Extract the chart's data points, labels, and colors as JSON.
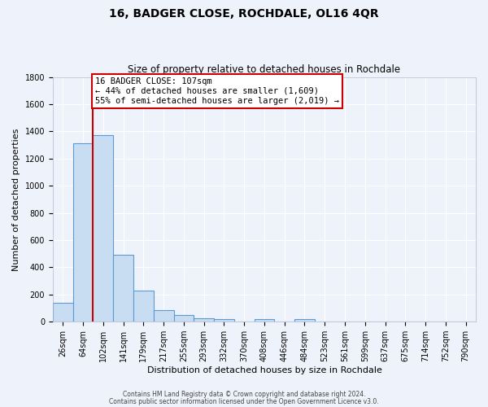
{
  "title": "16, BADGER CLOSE, ROCHDALE, OL16 4QR",
  "subtitle": "Size of property relative to detached houses in Rochdale",
  "xlabel": "Distribution of detached houses by size in Rochdale",
  "ylabel": "Number of detached properties",
  "bar_labels": [
    "26sqm",
    "64sqm",
    "102sqm",
    "141sqm",
    "179sqm",
    "217sqm",
    "255sqm",
    "293sqm",
    "332sqm",
    "370sqm",
    "408sqm",
    "446sqm",
    "484sqm",
    "523sqm",
    "561sqm",
    "599sqm",
    "637sqm",
    "675sqm",
    "714sqm",
    "752sqm",
    "790sqm"
  ],
  "bar_values": [
    140,
    1310,
    1370,
    490,
    230,
    85,
    50,
    28,
    20,
    0,
    20,
    0,
    20,
    0,
    0,
    0,
    0,
    0,
    0,
    0,
    0
  ],
  "bar_color": "#c9ddf2",
  "bar_edge_color": "#5b9bd5",
  "property_line_x": 2.0,
  "property_line_color": "#cc0000",
  "annotation_text": "16 BADGER CLOSE: 107sqm\n← 44% of detached houses are smaller (1,609)\n55% of semi-detached houses are larger (2,019) →",
  "annotation_box_color": "#ffffff",
  "annotation_box_edge_color": "#cc0000",
  "ylim": [
    0,
    1800
  ],
  "yticks": [
    0,
    200,
    400,
    600,
    800,
    1000,
    1200,
    1400,
    1600,
    1800
  ],
  "footer_line1": "Contains HM Land Registry data © Crown copyright and database right 2024.",
  "footer_line2": "Contains public sector information licensed under the Open Government Licence v3.0.",
  "bg_color": "#eef2fa",
  "plot_bg_color": "#eef2fa",
  "grid_color": "#ffffff",
  "title_fontsize": 10,
  "subtitle_fontsize": 8.5,
  "xlabel_fontsize": 8,
  "ylabel_fontsize": 8,
  "tick_fontsize": 7,
  "footer_fontsize": 5.5,
  "annot_fontsize": 7.5,
  "bar_width": 1.0
}
